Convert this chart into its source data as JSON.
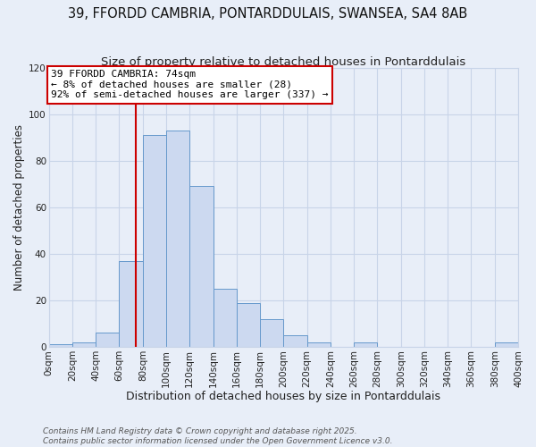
{
  "title": "39, FFORDD CAMBRIA, PONTARDDULAIS, SWANSEA, SA4 8AB",
  "subtitle": "Size of property relative to detached houses in Pontarddulais",
  "xlabel": "Distribution of detached houses by size in Pontarddulais",
  "ylabel": "Number of detached properties",
  "bin_edges": [
    0,
    20,
    40,
    60,
    80,
    100,
    120,
    140,
    160,
    180,
    200,
    220,
    240,
    260,
    280,
    300,
    320,
    340,
    360,
    380,
    400
  ],
  "bin_counts": [
    1,
    2,
    6,
    37,
    91,
    93,
    69,
    25,
    19,
    12,
    5,
    2,
    0,
    2,
    0,
    0,
    0,
    0,
    0,
    2
  ],
  "bar_color": "#ccd9f0",
  "bar_edge_color": "#6699cc",
  "property_size": 74,
  "vline_color": "#cc0000",
  "annotation_line1": "39 FFORDD CAMBRIA: 74sqm",
  "annotation_line2": "← 8% of detached houses are smaller (28)",
  "annotation_line3": "92% of semi-detached houses are larger (337) →",
  "annotation_box_edge_color": "#cc0000",
  "annotation_box_face_color": "#ffffff",
  "ylim": [
    0,
    120
  ],
  "xlim": [
    0,
    400
  ],
  "grid_color": "#c8d4e8",
  "background_color": "#e8eef8",
  "footer_line1": "Contains HM Land Registry data © Crown copyright and database right 2025.",
  "footer_line2": "Contains public sector information licensed under the Open Government Licence v3.0.",
  "title_fontsize": 10.5,
  "subtitle_fontsize": 9.5,
  "xlabel_fontsize": 9,
  "ylabel_fontsize": 8.5,
  "tick_fontsize": 7.5,
  "annotation_fontsize": 8,
  "footer_fontsize": 6.5
}
